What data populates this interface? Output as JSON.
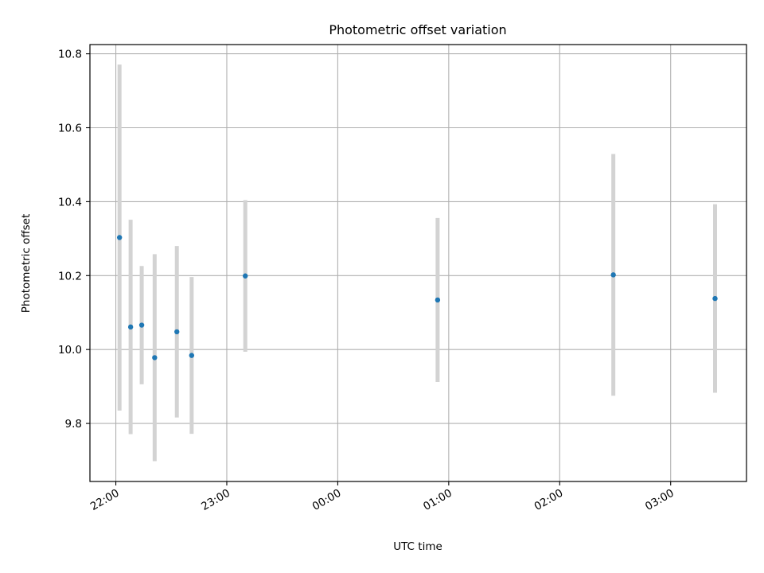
{
  "chart_data": {
    "type": "scatter",
    "title": "Photometric offset variation",
    "xlabel": "UTC time",
    "ylabel": "Photometric offset",
    "xlim": [
      "21:46",
      "03:41"
    ],
    "ylim": [
      9.643,
      10.825
    ],
    "x_ticks": [
      "22:00",
      "23:00",
      "00:00",
      "01:00",
      "02:00",
      "03:00"
    ],
    "y_ticks": [
      "9.8",
      "10.0",
      "10.2",
      "10.4",
      "10.6",
      "10.8"
    ],
    "grid": true,
    "colors": {
      "point": "#1f77b4",
      "errorbar": "#d3d3d3",
      "grid": "#b0b0b0"
    },
    "points": [
      {
        "x": "22:02",
        "y": 10.303,
        "yerr": 0.468
      },
      {
        "x": "22:08",
        "y": 10.061,
        "yerr": 0.29
      },
      {
        "x": "22:14",
        "y": 10.066,
        "yerr": 0.16
      },
      {
        "x": "22:21",
        "y": 9.978,
        "yerr": 0.28
      },
      {
        "x": "22:33",
        "y": 10.048,
        "yerr": 0.232
      },
      {
        "x": "22:41",
        "y": 9.984,
        "yerr": 0.212
      },
      {
        "x": "23:10",
        "y": 10.199,
        "yerr": 0.205
      },
      {
        "x": "00:54",
        "y": 10.134,
        "yerr": 0.222
      },
      {
        "x": "02:29",
        "y": 10.202,
        "yerr": 0.327
      },
      {
        "x": "03:24",
        "y": 10.138,
        "yerr": 0.255
      }
    ]
  }
}
